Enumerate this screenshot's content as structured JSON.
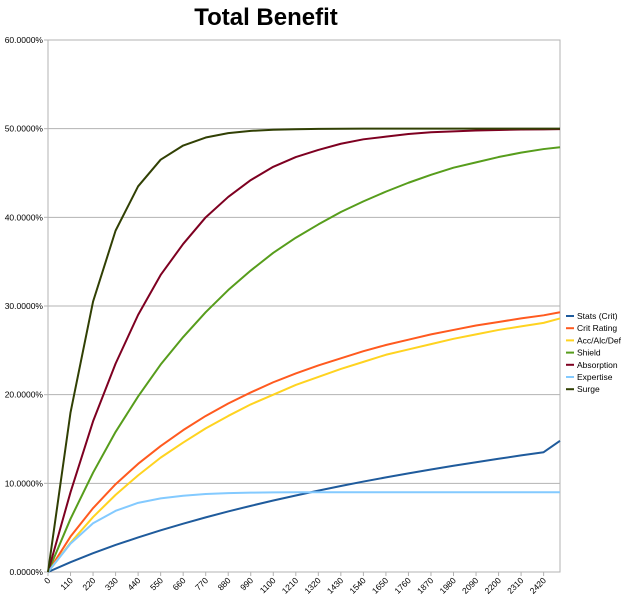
{
  "chart_data": {
    "type": "line",
    "title": "Total Benefit",
    "xlabel": "",
    "ylabel": "",
    "xlim": [
      0,
      2500
    ],
    "ylim": [
      0,
      0.6
    ],
    "grid": true,
    "legend_position": "right",
    "y_ticks": [
      {
        "value": 0.0,
        "label": "0.0000%"
      },
      {
        "value": 0.1,
        "label": "10.0000%"
      },
      {
        "value": 0.2,
        "label": "20.0000%"
      },
      {
        "value": 0.3,
        "label": "30.0000%"
      },
      {
        "value": 0.4,
        "label": "40.0000%"
      },
      {
        "value": 0.5,
        "label": "50.0000%"
      },
      {
        "value": 0.6,
        "label": "60.0000%"
      }
    ],
    "x_ticks": [
      0,
      110,
      220,
      330,
      440,
      550,
      660,
      770,
      880,
      990,
      1100,
      1210,
      1320,
      1430,
      1540,
      1650,
      1760,
      1870,
      1980,
      2090,
      2200,
      2310,
      2420
    ],
    "x": [
      0,
      110,
      220,
      330,
      440,
      550,
      660,
      770,
      880,
      990,
      1100,
      1210,
      1320,
      1430,
      1540,
      1650,
      1760,
      1870,
      1980,
      2090,
      2200,
      2310,
      2420,
      2500
    ],
    "series": [
      {
        "name": "Stats (Crit)",
        "color": "#1f5b9c",
        "values": [
          0.0,
          0.0111,
          0.0212,
          0.0305,
          0.039,
          0.047,
          0.0545,
          0.0616,
          0.0683,
          0.0746,
          0.0806,
          0.0863,
          0.0918,
          0.097,
          0.102,
          0.1067,
          0.1112,
          0.1156,
          0.1198,
          0.1238,
          0.1277,
          0.1315,
          0.1351,
          0.148
        ]
      },
      {
        "name": "Crit Rating",
        "color": "#ff5a1f",
        "values": [
          0.0,
          0.04,
          0.072,
          0.099,
          0.122,
          0.142,
          0.16,
          0.176,
          0.19,
          0.2025,
          0.214,
          0.224,
          0.233,
          0.241,
          0.249,
          0.256,
          0.262,
          0.268,
          0.273,
          0.278,
          0.282,
          0.286,
          0.2895,
          0.293
        ]
      },
      {
        "name": "Acc/Alc/Def",
        "color": "#ffd320",
        "values": [
          0.0,
          0.033,
          0.062,
          0.087,
          0.109,
          0.129,
          0.146,
          0.162,
          0.176,
          0.189,
          0.2,
          0.211,
          0.22,
          0.229,
          0.237,
          0.245,
          0.251,
          0.257,
          0.263,
          0.268,
          0.273,
          0.277,
          0.281,
          0.286
        ]
      },
      {
        "name": "Shield",
        "color": "#579d1c",
        "values": [
          0.0,
          0.06,
          0.112,
          0.158,
          0.198,
          0.234,
          0.265,
          0.293,
          0.318,
          0.34,
          0.36,
          0.377,
          0.392,
          0.406,
          0.418,
          0.429,
          0.439,
          0.448,
          0.456,
          0.462,
          0.468,
          0.473,
          0.477,
          0.479
        ]
      },
      {
        "name": "Absorption",
        "color": "#7e0021",
        "values": [
          0.0,
          0.09,
          0.17,
          0.235,
          0.29,
          0.335,
          0.37,
          0.4,
          0.423,
          0.442,
          0.457,
          0.468,
          0.476,
          0.483,
          0.488,
          0.491,
          0.494,
          0.496,
          0.497,
          0.498,
          0.4985,
          0.499,
          0.4992,
          0.4995
        ]
      },
      {
        "name": "Expertise",
        "color": "#83caff",
        "values": [
          0.0,
          0.032,
          0.055,
          0.069,
          0.078,
          0.083,
          0.086,
          0.088,
          0.089,
          0.0895,
          0.0898,
          0.09,
          0.09,
          0.09,
          0.09,
          0.09,
          0.09,
          0.09,
          0.09,
          0.09,
          0.09,
          0.09,
          0.09,
          0.09
        ]
      },
      {
        "name": "Surge",
        "color": "#314004",
        "values": [
          0.0,
          0.18,
          0.305,
          0.385,
          0.435,
          0.465,
          0.481,
          0.49,
          0.495,
          0.4975,
          0.4988,
          0.4994,
          0.4997,
          0.4999,
          0.5,
          0.5,
          0.5,
          0.5,
          0.5,
          0.5,
          0.5,
          0.5,
          0.5,
          0.5
        ]
      }
    ]
  }
}
